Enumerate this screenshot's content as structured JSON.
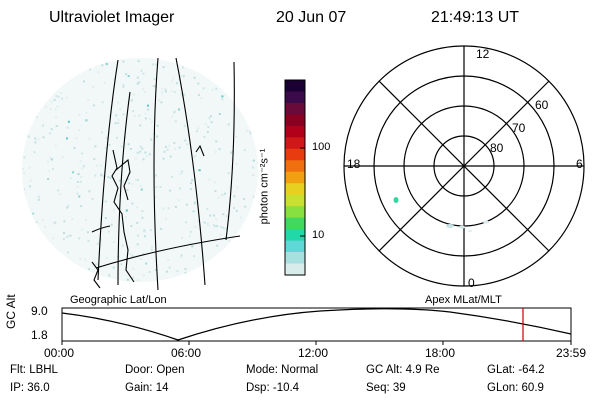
{
  "header": {
    "instrument": "Ultraviolet Imager",
    "date": "20 Jun 07",
    "time": "21:49:13 UT"
  },
  "colorbar": {
    "unit_label": "photon cm⁻²s⁻¹",
    "ticks": [
      "100",
      "10"
    ],
    "colors": [
      "#1a0033",
      "#3a0a4a",
      "#6a0a3a",
      "#8a0020",
      "#b0001a",
      "#d01818",
      "#e83c10",
      "#f07010",
      "#f0a010",
      "#e8d020",
      "#c8e030",
      "#88e040",
      "#40d860",
      "#20d8a8",
      "#60d8d8",
      "#a8e0e0",
      "#d8ecec"
    ]
  },
  "panels": {
    "left_label": "Geographic Lat/Lon",
    "right_label": "Apex MLat/MLT"
  },
  "polar_plot": {
    "mlt_labels": {
      "top": "12",
      "left": "18",
      "right": "6",
      "bottom": "0"
    },
    "lat_labels": [
      "60",
      "70",
      "80"
    ]
  },
  "orbit": {
    "ylabel": "GC Alt",
    "y_ticks": [
      "9.0",
      "1.8"
    ],
    "x_ticks": [
      "00:00",
      "06:00",
      "12:00",
      "18:00",
      "23:59"
    ],
    "marker_color": "#cc0000"
  },
  "status": {
    "row1": [
      {
        "label": "Flt:",
        "value": "LBHL"
      },
      {
        "label": "Door:",
        "value": "Open"
      },
      {
        "label": "Mode:",
        "value": "Normal"
      },
      {
        "label": "GC Alt:",
        "value": "4.9 Re"
      },
      {
        "label": "GLat:",
        "value": "-64.2"
      }
    ],
    "row2": [
      {
        "label": "IP:",
        "value": "36.0"
      },
      {
        "label": "Gain:",
        "value": "14"
      },
      {
        "label": "Dsp:",
        "value": "-10.4"
      },
      {
        "label": "Seq:",
        "value": "39"
      },
      {
        "label": "GLon:",
        "value": "60.9"
      }
    ]
  }
}
